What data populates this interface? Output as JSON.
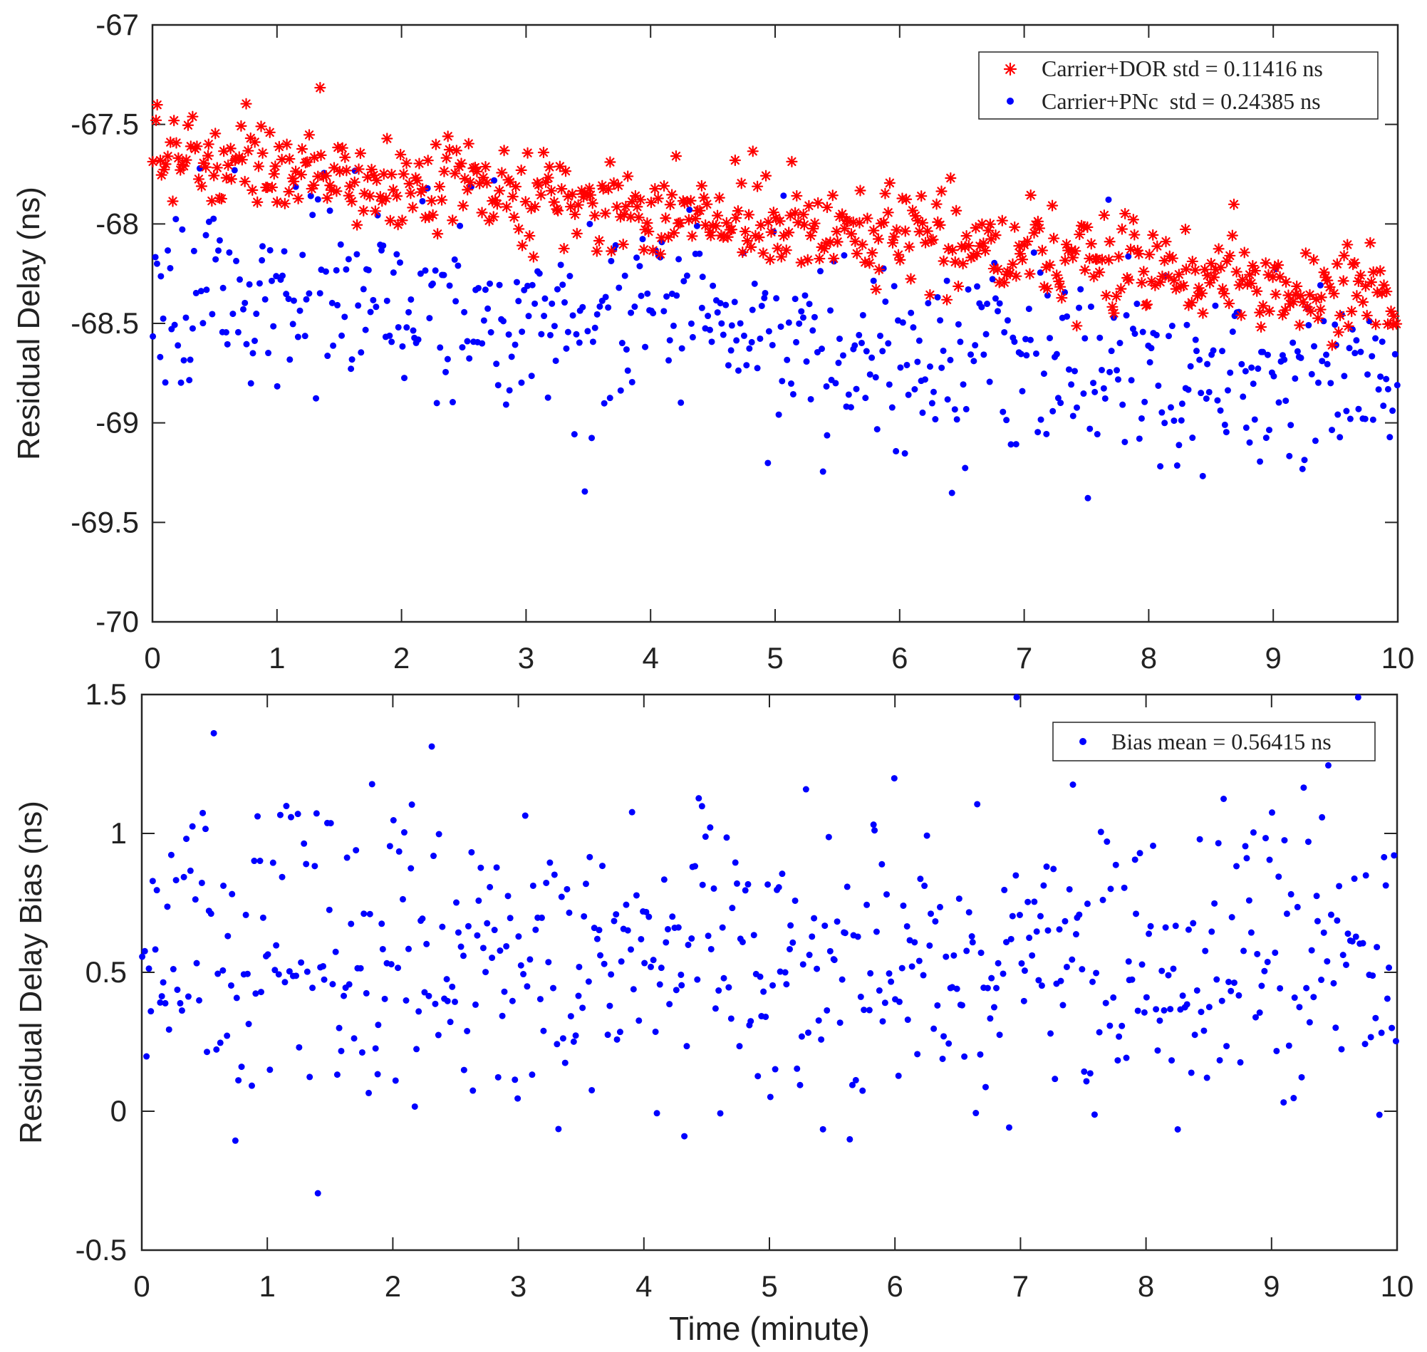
{
  "chart_data": [
    {
      "type": "scatter",
      "xlabel": "",
      "ylabel": "Residual Delay (ns)",
      "xlim": [
        0,
        10
      ],
      "ylim": [
        -70,
        -67
      ],
      "xticks": [
        0,
        1,
        2,
        3,
        4,
        5,
        6,
        7,
        8,
        9,
        10
      ],
      "xtick_labels": [
        "0",
        "1",
        "2",
        "3",
        "4",
        "5",
        "6",
        "7",
        "8",
        "9",
        "10"
      ],
      "yticks": [
        -67,
        -67.5,
        -68,
        -68.5,
        -69,
        -69.5,
        -70
      ],
      "ytick_labels": [
        "-67",
        "-67.5",
        "-68",
        "-68.5",
        "-69",
        "-69.5",
        "-70"
      ],
      "grid": false,
      "legend_position": "top-right",
      "n_points": 600,
      "series": [
        {
          "name": "Carrier+DOR std = 0.11416 ns",
          "marker": "asterisk",
          "color": "#ff0000",
          "trend_start": -67.65,
          "trend_end": -68.35,
          "spread": 0.11416,
          "seed": 7
        },
        {
          "name": "Carrier+PNc  std = 0.24385 ns",
          "marker": "dot",
          "color": "#0000ff",
          "trend_start": -68.25,
          "trend_end": -68.85,
          "spread": 0.24385,
          "seed": 23
        }
      ]
    },
    {
      "type": "scatter",
      "xlabel": "Time (minute)",
      "ylabel": "Residual Delay Bias (ns)",
      "xlim": [
        0,
        10
      ],
      "ylim": [
        -0.5,
        1.5
      ],
      "xticks": [
        0,
        1,
        2,
        3,
        4,
        5,
        6,
        7,
        8,
        9,
        10
      ],
      "xtick_labels": [
        "0",
        "1",
        "2",
        "3",
        "4",
        "5",
        "6",
        "7",
        "8",
        "9",
        "10"
      ],
      "yticks": [
        -0.5,
        0,
        0.5,
        1,
        1.5
      ],
      "ytick_labels": [
        "-0.5",
        "0",
        "0.5",
        "1",
        "1.5"
      ],
      "grid": false,
      "legend_position": "top-right",
      "n_points": 600,
      "series": [
        {
          "name": "Bias mean = 0.56415 ns",
          "marker": "dot",
          "color": "#0000ff",
          "trend_start": 0.56415,
          "trend_end": 0.56415,
          "spread": 0.27,
          "seed": 51
        }
      ]
    }
  ]
}
